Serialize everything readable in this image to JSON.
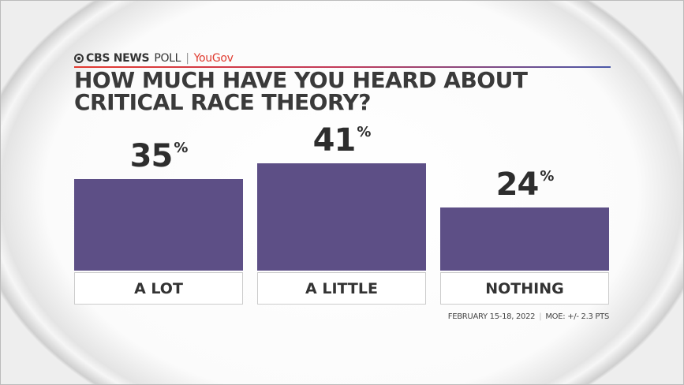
{
  "header": {
    "brand": "CBS NEWS",
    "brand_suffix": "POLL",
    "separator": "|",
    "partner": "YouGov"
  },
  "footer": {
    "dates": "FEBRUARY 15-18, 2022",
    "separator": "|",
    "moe": "MOE: +/- 2.3 PTS"
  },
  "chart_data": {
    "type": "bar",
    "title_lines": [
      "HOW MUCH HAVE YOU HEARD ABOUT",
      "CRITICAL RACE THEORY?"
    ],
    "categories": [
      "A LOT",
      "A LITTLE",
      "NOTHING"
    ],
    "values": [
      35,
      41,
      24
    ],
    "value_labels": [
      "35",
      "41",
      "24"
    ],
    "unit": "%",
    "ylim": [
      0,
      41
    ],
    "grid": false,
    "bar_color": "#5d4f86"
  }
}
